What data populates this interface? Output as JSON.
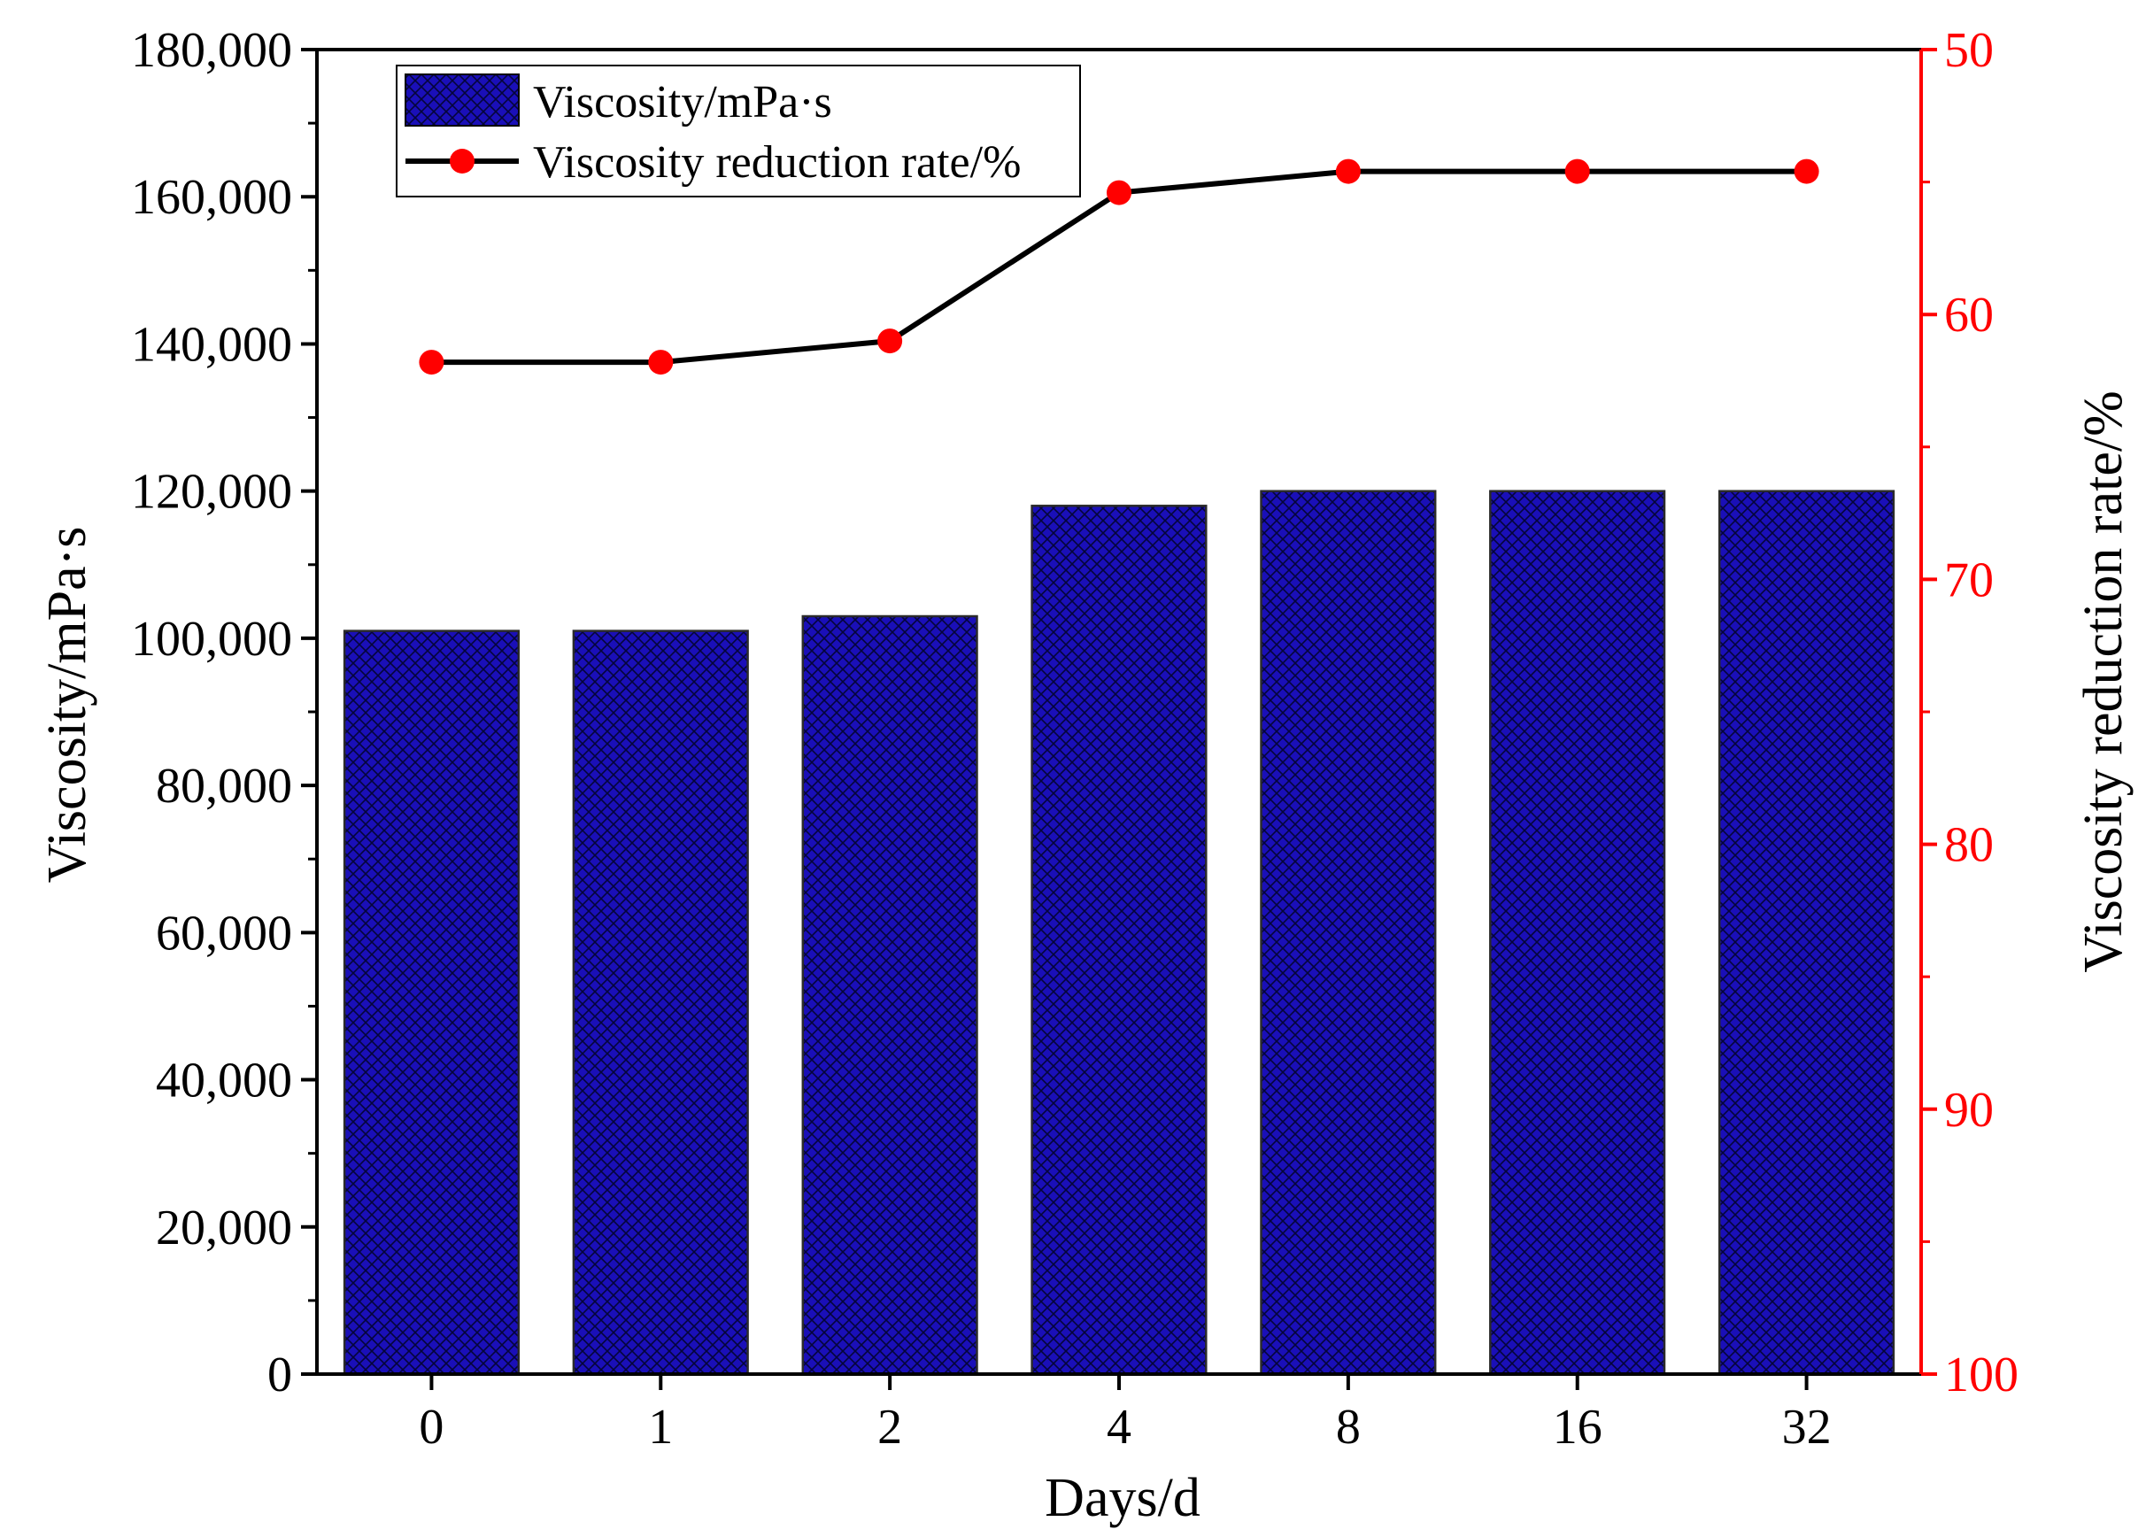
{
  "chart_data": {
    "type": "bar",
    "categories": [
      "0",
      "1",
      "2",
      "4",
      "8",
      "16",
      "32"
    ],
    "x_axis": {
      "label": "Days/d"
    },
    "y_axis_left": {
      "label": "Viscosity/mPa·s",
      "range": [
        0,
        180000
      ],
      "ticks": [
        "0",
        "20,000",
        "40,000",
        "60,000",
        "80,000",
        "100,000",
        "120,000",
        "140,000",
        "160,000",
        "180,000"
      ]
    },
    "y_axis_right": {
      "label": "Viscosity reduction rate/%",
      "range": [
        100,
        50
      ],
      "inverted": true,
      "color": "#ff0000",
      "ticks": [
        "50",
        "60",
        "70",
        "80",
        "90",
        "100"
      ]
    },
    "series": [
      {
        "name": "Viscosity/mPa·s",
        "type": "bar",
        "axis": "left",
        "color": "#1a0fb8",
        "pattern": "crosshatch",
        "values": [
          101000,
          101000,
          103000,
          118000,
          120000,
          120000,
          120000
        ]
      },
      {
        "name": "Viscosity reduction rate/%",
        "type": "line",
        "axis": "right",
        "line_color": "#000000",
        "marker_color": "#ff0000",
        "marker": "circle",
        "values": [
          61.8,
          61.8,
          61.0,
          55.4,
          54.6,
          54.6,
          54.6
        ]
      }
    ],
    "legend": {
      "position": "top-left"
    },
    "grid": false
  }
}
